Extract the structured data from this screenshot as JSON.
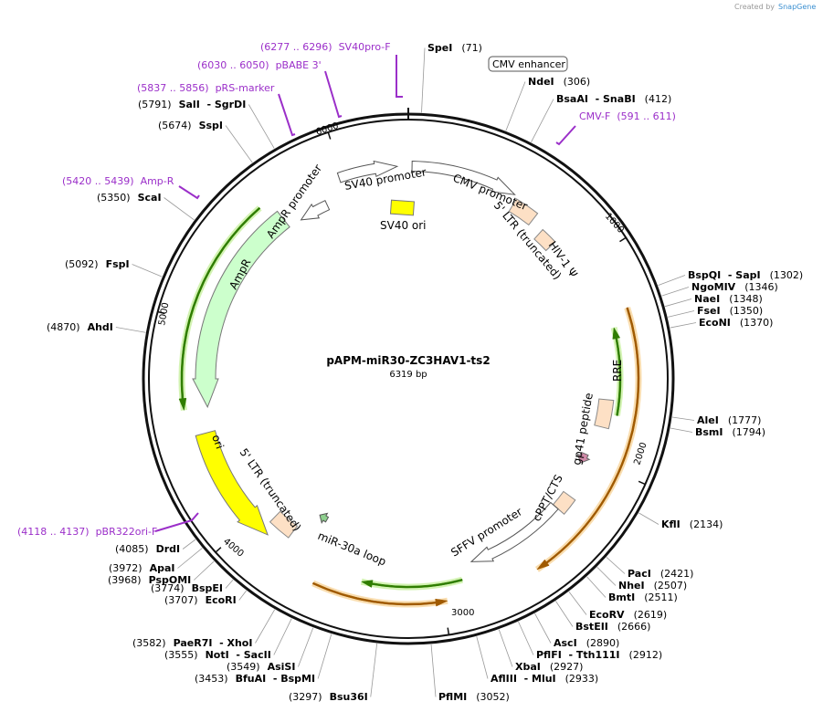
{
  "watermark": {
    "prefix": "Created by",
    "brand": "SnapGene"
  },
  "map": {
    "name": "pAPM-miR30-ZC3HAV1-ts2",
    "length": "6319 bp"
  },
  "ticks": [
    "1000",
    "2000",
    "3000",
    "4000",
    "5000",
    "6000"
  ],
  "features": [
    "CMV enhancer",
    "SV40 promoter",
    "CMV promoter",
    "5' LTR (truncated)",
    "HIV-1 Ψ",
    "RRE",
    "gp41 peptide",
    "cPPT/CTS",
    "SFFV promoter",
    "miR-30a loop",
    "5' LTR (truncated)",
    "ori",
    "AmpR",
    "AmpR promoter",
    "SV40 ori"
  ],
  "primers": [
    {
      "range": "(6277 .. 6296)",
      "name": "SV40pro-F"
    },
    {
      "range": "(6030 .. 6050)",
      "name": "pBABE 3'"
    },
    {
      "range": "(5837 .. 5856)",
      "name": "pRS-marker"
    },
    {
      "range": "(5420 .. 5439)",
      "name": "Amp-R"
    },
    {
      "range": "(591 .. 611)",
      "name": "CMV-F"
    },
    {
      "range": "(4118 .. 4137)",
      "name": "pBR322ori-F"
    }
  ],
  "enzymes_right": [
    {
      "name": "SpeI",
      "position": "(71)"
    },
    {
      "name": "NdeI",
      "position": "(306)"
    },
    {
      "name": "BsaAI  - SnaBI",
      "position": "(412)"
    },
    {
      "name": "BspQI  - SapI",
      "position": "(1302)"
    },
    {
      "name": "NgoMIV",
      "position": "(1346)"
    },
    {
      "name": "NaeI",
      "position": "(1348)"
    },
    {
      "name": "FseI",
      "position": "(1350)"
    },
    {
      "name": "EcoNI",
      "position": "(1370)"
    },
    {
      "name": "AleI",
      "position": "(1777)"
    },
    {
      "name": "BsmI",
      "position": "(1794)"
    },
    {
      "name": "KflI",
      "position": "(2134)"
    },
    {
      "name": "PacI",
      "position": "(2421)"
    },
    {
      "name": "NheI",
      "position": "(2507)"
    },
    {
      "name": "BmtI",
      "position": "(2511)"
    },
    {
      "name": "EcoRV",
      "position": "(2619)"
    },
    {
      "name": "BstEII",
      "position": "(2666)"
    },
    {
      "name": "AscI",
      "position": "(2890)"
    },
    {
      "name": "PflFI  - Tth111I",
      "position": "(2912)"
    },
    {
      "name": "XbaI",
      "position": "(2927)"
    },
    {
      "name": "AflIII  - MluI",
      "position": "(2933)"
    },
    {
      "name": "PflMI",
      "position": "(3052)"
    }
  ],
  "enzymes_left": [
    {
      "position": "(5791)",
      "name": "SalI  - SgrDI"
    },
    {
      "position": "(5674)",
      "name": "SspI"
    },
    {
      "position": "(5350)",
      "name": "ScaI"
    },
    {
      "position": "(5092)",
      "name": "FspI"
    },
    {
      "position": "(4870)",
      "name": "AhdI"
    },
    {
      "position": "(4085)",
      "name": "DrdI"
    },
    {
      "position": "(3972)",
      "name": "ApaI"
    },
    {
      "position": "(3968)",
      "name": "PspOMI"
    },
    {
      "position": "(3774)",
      "name": "BspEI"
    },
    {
      "position": "(3707)",
      "name": "EcoRI"
    },
    {
      "position": "(3582)",
      "name": "PaeR7I  - XhoI"
    },
    {
      "position": "(3555)",
      "name": "NotI  - SacII"
    },
    {
      "position": "(3549)",
      "name": "AsiSI"
    },
    {
      "position": "(3453)",
      "name": "BfuAI  - BspMI"
    },
    {
      "position": "(3297)",
      "name": "Bsu36I"
    }
  ]
}
